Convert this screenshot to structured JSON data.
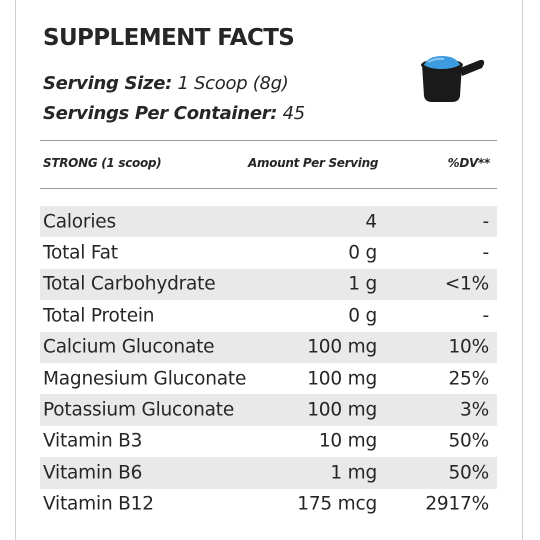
{
  "title": "SUPPLEMENT FACTS",
  "serving_size": {
    "label": "Serving Size:",
    "value": "1 Scoop (8g)"
  },
  "servings_per_container": {
    "label": "Servings Per Container:",
    "value": "45"
  },
  "icon": "scoop-icon",
  "colors": {
    "text": "#262626",
    "row_shade": "#e9e9e9",
    "scoop_body": "#1a1a1a",
    "powder": "#3d9be0"
  },
  "headers": {
    "name": "STRONG (1 scoop)",
    "amount": "Amount Per Serving",
    "dv": "%DV**"
  },
  "rows": [
    {
      "name": "Calories",
      "amount": "4",
      "dv": "-"
    },
    {
      "name": "Total Fat",
      "amount": "0 g",
      "dv": "-"
    },
    {
      "name": "Total Carbohydrate",
      "amount": "1 g",
      "dv": "<1%"
    },
    {
      "name": "Total Protein",
      "amount": "0 g",
      "dv": "-"
    },
    {
      "name": "Calcium Gluconate",
      "amount": "100 mg",
      "dv": "10%"
    },
    {
      "name": "Magnesium Gluconate",
      "amount": "100 mg",
      "dv": "25%"
    },
    {
      "name": "Potassium Gluconate",
      "amount": "100 mg",
      "dv": "3%"
    },
    {
      "name": "Vitamin B3",
      "amount": "10 mg",
      "dv": "50%"
    },
    {
      "name": "Vitamin B6",
      "amount": "1 mg",
      "dv": "50%"
    },
    {
      "name": "Vitamin B12",
      "amount": "175 mcg",
      "dv": "2917%"
    }
  ]
}
